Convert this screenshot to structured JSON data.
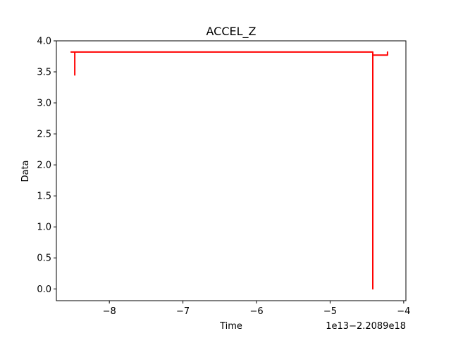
{
  "chart_data": {
    "type": "line",
    "title": "ACCEL_Z",
    "xlabel": "Time",
    "ylabel": "Data",
    "x_offset_text": "1e13−2.2089e18",
    "xlim": [
      -8.72,
      -3.97
    ],
    "ylim": [
      -0.19,
      4.0
    ],
    "x_ticks": [
      -8,
      -7,
      -6,
      -5,
      -4
    ],
    "x_tick_labels": [
      "−8",
      "−7",
      "−6",
      "−5",
      "−4"
    ],
    "y_ticks": [
      0.0,
      0.5,
      1.0,
      1.5,
      2.0,
      2.5,
      3.0,
      3.5,
      4.0
    ],
    "y_tick_labels": [
      "0.0",
      "0.5",
      "1.0",
      "1.5",
      "2.0",
      "2.5",
      "3.0",
      "3.5",
      "4.0"
    ],
    "grid": false,
    "series": [
      {
        "color": "#ff0000",
        "x": [
          -8.47,
          -8.47,
          -8.52,
          -4.42,
          -4.42,
          -4.42,
          -4.42,
          -4.42,
          -4.22,
          -4.22,
          -4.22
        ],
        "y": [
          3.45,
          3.82,
          3.82,
          3.82,
          3.82,
          0.0,
          3.82,
          3.77,
          3.77,
          3.82,
          3.82
        ]
      }
    ]
  }
}
